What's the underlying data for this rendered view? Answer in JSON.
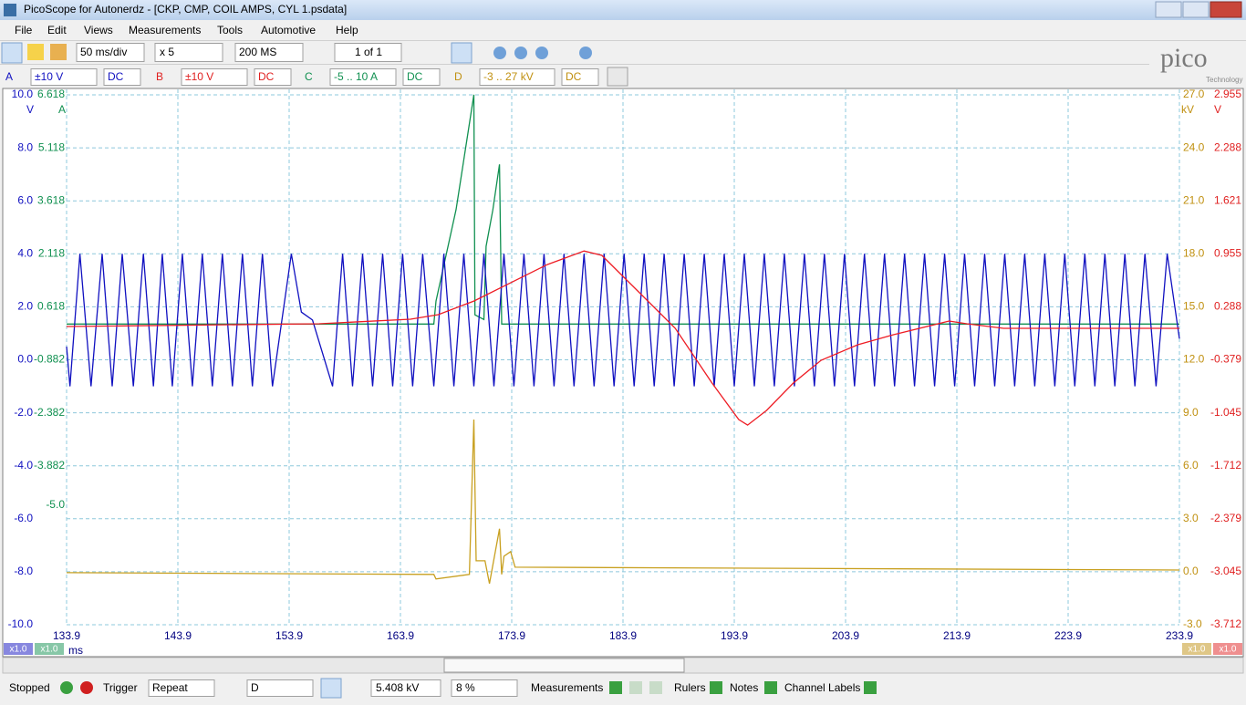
{
  "window": {
    "title": "PicoScope for Autonerdz - [CKP, CMP, COIL AMPS, CYL 1.psdata]"
  },
  "menu": [
    "File",
    "Edit",
    "Views",
    "Measurements",
    "Tools",
    "Automotive",
    "Help"
  ],
  "toolbar": {
    "timebase": "50 ms/div",
    "zoom": "x 5",
    "samples": "200 MS",
    "buffer": "1 of 1"
  },
  "channels": [
    {
      "name": "A",
      "range": "±10 V",
      "coupling": "DC",
      "color": "#1010c0"
    },
    {
      "name": "B",
      "range": "±10 V",
      "coupling": "DC",
      "color": "#e02020"
    },
    {
      "name": "C",
      "range": "-5 .. 10 A",
      "coupling": "DC",
      "color": "#109050"
    },
    {
      "name": "D",
      "range": "-3 .. 27 kV",
      "coupling": "DC",
      "color": "#c09010"
    }
  ],
  "logo": {
    "name": "pico",
    "tagline": "Technology"
  },
  "scope": {
    "type": "line",
    "xlim": [
      133.9,
      233.9
    ],
    "xticks": [
      133.9,
      143.9,
      153.9,
      163.9,
      173.9,
      183.9,
      193.9,
      203.9,
      213.9,
      223.9,
      233.9
    ],
    "x_unit": "ms",
    "grid": true,
    "axes": [
      {
        "unit": "V",
        "color": "#1010c0",
        "scale_label": "x1.0",
        "ylim": [
          -10,
          10
        ],
        "yticks": [
          {
            "value": 10,
            "label": "10.0"
          },
          {
            "value": 8,
            "label": "8.0"
          },
          {
            "value": 6,
            "label": "6.0"
          },
          {
            "value": 4,
            "label": "4.0"
          },
          {
            "value": 2,
            "label": "2.0"
          },
          {
            "value": 0,
            "label": "0.0"
          },
          {
            "value": -2,
            "label": "-2.0"
          },
          {
            "value": -4,
            "label": "-4.0"
          },
          {
            "value": -6,
            "label": "-6.0"
          },
          {
            "value": -8,
            "label": "-8.0"
          },
          {
            "value": -10,
            "label": "-10.0"
          }
        ]
      },
      {
        "unit": "A",
        "color": "#109050",
        "scale_label": "x1.0",
        "ylim": [
          -8.382,
          6.618
        ],
        "yticks": [
          6.618,
          5.118,
          3.618,
          2.118,
          0.618,
          -0.882,
          -2.382,
          -3.882,
          {
            "value": -5,
            "label": "-5.0"
          }
        ]
      },
      {
        "unit": "kV",
        "color": "#c09010",
        "scale_label": "x1.0",
        "ylim": [
          -3,
          27
        ],
        "yticks": [
          {
            "value": 27,
            "label": "27.0"
          },
          {
            "value": 24,
            "label": "24.0"
          },
          {
            "value": 21,
            "label": "21.0"
          },
          {
            "value": 18,
            "label": "18.0"
          },
          {
            "value": 15,
            "label": "15.0"
          },
          {
            "value": 12,
            "label": "12.0"
          },
          {
            "value": 9,
            "label": "9.0"
          },
          {
            "value": 6,
            "label": "6.0"
          },
          {
            "value": 3,
            "label": "3.0"
          },
          {
            "value": 0,
            "label": "0.0"
          },
          {
            "value": -3,
            "label": "-3.0"
          }
        ]
      },
      {
        "unit": "V",
        "color": "#e02020",
        "scale_label": "x1.0",
        "ylim": [
          -3.712,
          2.955
        ],
        "yticks": [
          2.955,
          2.288,
          1.621,
          0.955,
          0.288,
          -0.379,
          -1.045,
          -1.712,
          -2.379,
          -3.045,
          -3.712
        ]
      }
    ],
    "series": [
      {
        "color": "#c8a020",
        "axis": 2,
        "x": [
          133.9,
          166.9,
          167.1,
          170.1,
          170.5,
          170.7,
          171.5,
          171.9,
          172.8,
          173.0,
          173.2,
          173.8,
          174.2,
          233.9
        ],
        "values": [
          -0.05,
          -0.15,
          -0.41,
          -0.15,
          8.62,
          0.62,
          0.62,
          -0.67,
          2.43,
          -0.15,
          0.88,
          1.14,
          0.26,
          0.1
        ]
      },
      {
        "color": "#109050",
        "axis": 1,
        "x": [
          133.9,
          166.9,
          167.1,
          168.9,
          170.5,
          170.6,
          171.4,
          171.6,
          172.2,
          172.8,
          173.0,
          233.9
        ],
        "values": [
          0.13,
          0.13,
          0.78,
          3.37,
          6.62,
          0.39,
          0.26,
          2.33,
          3.36,
          4.65,
          0.13,
          0.13
        ]
      },
      {
        "color": "#1010c0",
        "axis": 0,
        "x": [
          133.9,
          134.2,
          135.1,
          136.1,
          137.1,
          138.0,
          138.9,
          139.9,
          140.8,
          141.7,
          142.5,
          143.4,
          144.3,
          145.2,
          146.1,
          147.0,
          147.9,
          148.8,
          149.7,
          150.6,
          151.5,
          152.4,
          154.1,
          155.0,
          156.0,
          157.8,
          158.7,
          159.6,
          160.5,
          161.4,
          162.3,
          163.2,
          164.1,
          165.0,
          165.9,
          166.9,
          167.8,
          168.7,
          169.6,
          170.5,
          171.4,
          172.3,
          173.2,
          174.1,
          175.0,
          175.9,
          176.8,
          177.7,
          178.6,
          179.5,
          180.4,
          181.3,
          182.2,
          183.1,
          184.0,
          184.9,
          185.8,
          186.7,
          187.6,
          188.5,
          189.4,
          190.3,
          191.2,
          192.1,
          193.0,
          193.9,
          194.8,
          195.7,
          196.6,
          197.5,
          198.4,
          199.3,
          200.2,
          201.1,
          202.0,
          202.9,
          203.8,
          204.7,
          205.6,
          206.5,
          207.4,
          208.3,
          209.2,
          210.1,
          211.0,
          211.9,
          212.8,
          213.7,
          214.6,
          215.5,
          216.4,
          217.3,
          218.2,
          219.1,
          220.0,
          220.9,
          221.8,
          222.7,
          223.6,
          224.5,
          225.4,
          226.3,
          227.2,
          228.1,
          229.0,
          229.9,
          230.8,
          231.8,
          232.8,
          233.9
        ],
        "values": [
          0.5,
          -1,
          4,
          -1,
          4,
          -1,
          4,
          -1,
          4,
          -1,
          4,
          -1,
          4,
          -1,
          4,
          -1,
          4,
          -1,
          4,
          -1,
          4,
          -1,
          4,
          1.8,
          1.5,
          -1,
          4,
          -1,
          4,
          -1,
          4,
          -1,
          4,
          -1,
          4,
          -1,
          4,
          -1,
          4,
          -1,
          4,
          -1,
          4,
          -1,
          4,
          -1,
          4,
          -1,
          4,
          -1,
          4,
          -1,
          4,
          -1,
          4,
          -1,
          4,
          -1,
          4,
          -1,
          4,
          -1,
          4,
          -1,
          4,
          -1,
          4,
          -1,
          4,
          -1,
          4,
          -1,
          4,
          -1,
          4,
          -1,
          4,
          -1,
          4,
          -1,
          4,
          -1,
          4,
          -1,
          4,
          -1,
          4,
          -1,
          4,
          -1,
          4,
          -1,
          4,
          -1,
          4,
          -1,
          4,
          -1,
          4,
          -1,
          4,
          -1,
          4,
          -1,
          4,
          -1,
          4,
          -1,
          4,
          0.8
        ]
      },
      {
        "color": "#ee1c24",
        "axis": 3,
        "x": [
          133.9,
          156.6,
          164.8,
          167.3,
          170.5,
          173.8,
          177.1,
          180.4,
          182.0,
          185.3,
          188.6,
          191.9,
          194.3,
          195.1,
          196.8,
          199.2,
          201.7,
          205.0,
          208.2,
          213.2,
          214.8,
          218.1,
          233.9
        ],
        "values": [
          0.04,
          0.075,
          0.132,
          0.19,
          0.36,
          0.59,
          0.82,
          0.99,
          0.935,
          0.476,
          0.017,
          -0.671,
          -1.13,
          -1.2,
          -1.015,
          -0.671,
          -0.384,
          -0.189,
          -0.063,
          0.109,
          0.075,
          0.017,
          0.017
        ]
      }
    ]
  },
  "status": {
    "state": "Stopped",
    "trigger_label": "Trigger",
    "trigger_mode": "Repeat",
    "trigger_source": "D",
    "threshold": "5.408 kV",
    "pre_trigger": "8 %",
    "measurements": "Measurements",
    "rulers": "Rulers",
    "notes": "Notes",
    "channel_labels": "Channel Labels"
  }
}
